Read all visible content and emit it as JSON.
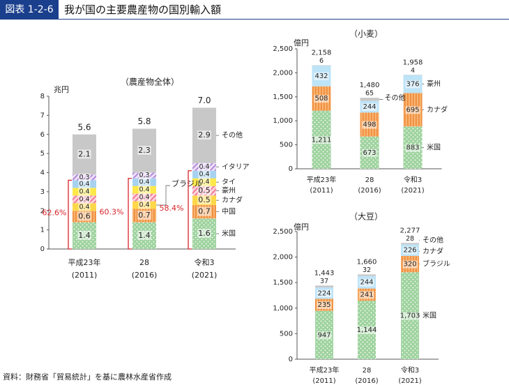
{
  "header": {
    "fig_label": "図表 1-2-6",
    "title": "我が国の主要農産物の国別輸入額"
  },
  "source": "資料：財務省「貿易統計」を基に農林水産省作成",
  "colors": {
    "us": "#8cc98e",
    "canada": "#f5a35c",
    "brazil": "#ffd84a",
    "china": "#f5b18a",
    "australia": "#f3a7b9",
    "thailand": "#ffe94a",
    "italy": "#c9a8e6",
    "other": "#c8c8c8",
    "thailand_ag": "#a6d2f0",
    "wheat_aus": "#bde3f7"
  },
  "chart_data": [
    {
      "type": "bar",
      "title": "（農産物全体）",
      "ylabel": "兆円",
      "ylim": [
        0,
        8
      ],
      "yticks": [
        "0",
        "1",
        "2",
        "3",
        "4",
        "5",
        "6",
        "7",
        "8"
      ],
      "categories": [
        {
          "label": "平成23年",
          "sub": "(2011)"
        },
        {
          "label": "28",
          "sub": "(2016)"
        },
        {
          "label": "令和3",
          "sub": "(2021)"
        }
      ],
      "series": [
        {
          "name": "米国",
          "values": [
            1.4,
            1.4,
            1.6
          ],
          "labels": [
            "1.4",
            "1.4",
            "1.6"
          ],
          "fill": "dots",
          "color": "#8cc98e"
        },
        {
          "name": "中国",
          "values": [
            0.6,
            0.7,
            0.7
          ],
          "labels": [
            "0.6",
            "0.7",
            "0.7"
          ],
          "fill": "vstripe",
          "color": "#f5a35c"
        },
        {
          "name": "カナダ",
          "values": [
            0.4,
            0.4,
            0.5
          ],
          "labels": [
            "0.4",
            "0.4",
            "0.5"
          ],
          "fill": "solid",
          "color": "#ffd84a"
        },
        {
          "name": "豪州",
          "values": [
            0.4,
            0.4,
            0.5
          ],
          "labels": [
            "0.4",
            "0.4",
            "0.5"
          ],
          "fill": "diag",
          "color": "#f38aa0"
        },
        {
          "name": "タイ",
          "values": [
            0.4,
            0.4,
            0.4
          ],
          "labels": [
            "0.4",
            "0.4",
            "0.4"
          ],
          "fill": "solid",
          "color": "#ffe94a"
        },
        {
          "name": "",
          "values": [
            0.4,
            0.4,
            0.4
          ],
          "labels": [
            "0.4",
            "0.4",
            "0.4"
          ],
          "fill": "solid",
          "color": "#a6d2f0"
        },
        {
          "name": "イタリア",
          "values": [
            0.3,
            0.3,
            0.4
          ],
          "labels": [
            "0.3",
            "0.3",
            "0.4"
          ],
          "fill": "diag",
          "color": "#c9a8e6"
        },
        {
          "name": "その他",
          "values": [
            2.1,
            2.3,
            2.9
          ],
          "labels": [
            "2.1",
            "2.3",
            "2.9"
          ],
          "fill": "solid",
          "color": "#c8c8c8"
        }
      ],
      "totals": [
        "5.6",
        "5.8",
        "7.0"
      ],
      "share_labels": [
        "62.6%",
        "60.3%",
        "58.4%"
      ],
      "legend": [
        {
          "text": "その他",
          "series": 7
        },
        {
          "text": "イタリア",
          "series": 6
        },
        {
          "text": "タイ",
          "series": 4
        },
        {
          "text": "豪州",
          "series": 3
        },
        {
          "text": "カナダ",
          "series": 2
        },
        {
          "text": "中国",
          "series": 1
        },
        {
          "text": "米国",
          "series": 0
        }
      ],
      "callout": "ブラジル"
    },
    {
      "type": "bar",
      "title": "（小麦）",
      "ylabel": "億円",
      "ylim": [
        0,
        2500
      ],
      "yticks": [
        "0",
        "500",
        "1,000",
        "1,500",
        "2,000",
        "2,500"
      ],
      "categories": [
        {
          "label": "平成23年",
          "sub": "(2011)"
        },
        {
          "label": "28",
          "sub": "(2016)"
        },
        {
          "label": "令和3",
          "sub": "(2021)"
        }
      ],
      "series": [
        {
          "name": "米国",
          "values": [
            1211,
            673,
            883
          ],
          "labels": [
            "1,211",
            "673",
            "883"
          ],
          "fill": "dots",
          "color": "#8cc98e"
        },
        {
          "name": "カナダ",
          "values": [
            508,
            498,
            695
          ],
          "labels": [
            "508",
            "498",
            "695"
          ],
          "fill": "vstripe",
          "color": "#f5a35c"
        },
        {
          "name": "豪州",
          "values": [
            432,
            244,
            376
          ],
          "labels": [
            "432",
            "244",
            "376"
          ],
          "fill": "solid",
          "color": "#bde3f7"
        },
        {
          "name": "その他",
          "values": [
            6,
            65,
            4
          ],
          "labels": [
            "6",
            "65",
            "4"
          ],
          "fill": "solid",
          "color": "#c8c8c8"
        }
      ],
      "totals": [
        "2,158",
        "1,480",
        "1,958"
      ],
      "legend": [
        {
          "text": "豪州",
          "series": 2
        },
        {
          "text": "カナダ",
          "series": 1
        },
        {
          "text": "米国",
          "series": 0
        }
      ],
      "legend_mid": {
        "text": "その他",
        "series": 3
      }
    },
    {
      "type": "bar",
      "title": "（大豆）",
      "ylabel": "億円",
      "ylim": [
        0,
        2500
      ],
      "yticks": [
        "0",
        "500",
        "1,000",
        "1,500",
        "2,000",
        "2,500"
      ],
      "categories": [
        {
          "label": "平成23年",
          "sub": "(2011)"
        },
        {
          "label": "28",
          "sub": "(2016)"
        },
        {
          "label": "令和3",
          "sub": "(2021)"
        }
      ],
      "series": [
        {
          "name": "米国",
          "values": [
            947,
            1144,
            1703
          ],
          "labels": [
            "947",
            "1,144",
            "1,703"
          ],
          "fill": "dots",
          "color": "#8cc98e"
        },
        {
          "name": "ブラジル",
          "values": [
            235,
            241,
            320
          ],
          "labels": [
            "235",
            "241",
            "320"
          ],
          "fill": "vstripe",
          "color": "#f5a35c"
        },
        {
          "name": "カナダ",
          "values": [
            224,
            244,
            226
          ],
          "labels": [
            "224",
            "244",
            "226"
          ],
          "fill": "solid",
          "color": "#bde3f7"
        },
        {
          "name": "その他",
          "values": [
            37,
            32,
            28
          ],
          "labels": [
            "37",
            "32",
            "28"
          ],
          "fill": "solid",
          "color": "#c8c8c8"
        }
      ],
      "totals": [
        "1,443",
        "1,660",
        "2,277"
      ],
      "legend": [
        {
          "text": "その他",
          "series": 3
        },
        {
          "text": "カナダ",
          "series": 2
        },
        {
          "text": "ブラジル",
          "series": 1
        },
        {
          "text": "米国",
          "series": 0
        }
      ]
    }
  ]
}
